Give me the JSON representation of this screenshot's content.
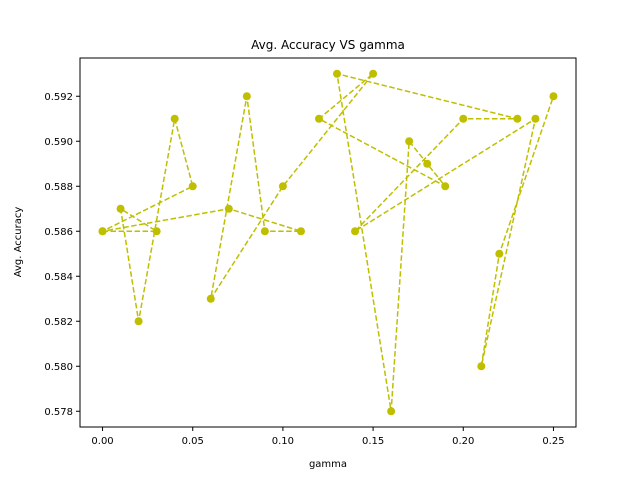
{
  "chart_data": {
    "type": "line",
    "title": "Avg. Accuracy VS gamma",
    "xlabel": "gamma",
    "ylabel": "Avg. Accuracy",
    "xlim": [
      -0.0125,
      0.2625
    ],
    "ylim": [
      0.5773,
      0.5937
    ],
    "xticks": [
      0.0,
      0.05,
      0.1,
      0.15,
      0.2,
      0.25
    ],
    "xtick_labels": [
      "0.00",
      "0.05",
      "0.10",
      "0.15",
      "0.20",
      "0.25"
    ],
    "yticks": [
      0.578,
      0.58,
      0.582,
      0.584,
      0.586,
      0.588,
      0.59,
      0.592
    ],
    "ytick_labels": [
      "0.578",
      "0.580",
      "0.582",
      "0.584",
      "0.586",
      "0.588",
      "0.590",
      "0.592"
    ],
    "grid": false,
    "series": [
      {
        "color": "#bfbf00",
        "line_style": "dashed",
        "marker": "circle",
        "x": [
          0.0,
          0.03,
          0.01,
          0.02,
          0.04,
          0.05,
          0.0,
          0.07,
          0.11,
          0.09,
          0.08,
          0.06,
          0.1,
          0.15,
          0.12,
          0.19,
          0.18,
          0.17,
          0.16,
          0.13,
          0.23,
          0.2,
          0.14,
          0.24,
          0.21,
          0.22,
          0.25
        ],
        "y": [
          0.586,
          0.586,
          0.587,
          0.582,
          0.591,
          0.588,
          0.586,
          0.587,
          0.586,
          0.586,
          0.592,
          0.583,
          0.588,
          0.593,
          0.591,
          0.588,
          0.589,
          0.59,
          0.578,
          0.593,
          0.591,
          0.591,
          0.586,
          0.591,
          0.58,
          0.585,
          0.592
        ]
      }
    ]
  }
}
